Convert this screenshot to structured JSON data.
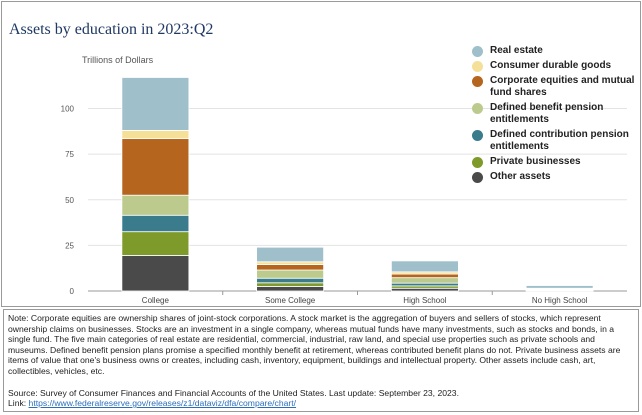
{
  "title": "Assets by education in 2023:Q2",
  "chart_data": {
    "type": "bar",
    "stacked": true,
    "title": "Assets by education in 2023:Q2",
    "ylabel": "Trillions of Dollars",
    "xlabel": "",
    "ylim": [
      0,
      120
    ],
    "yticks": [
      0,
      25,
      50,
      75,
      100
    ],
    "categories": [
      "College",
      "Some College",
      "High School",
      "No High School"
    ],
    "series": [
      {
        "name": "Other assets",
        "color": "#4a4a4a",
        "values": [
          19.5,
          2.5,
          1.5,
          0.2
        ]
      },
      {
        "name": "Private businesses",
        "color": "#7d9a2a",
        "values": [
          13.0,
          2.0,
          1.3,
          0.2
        ]
      },
      {
        "name": "Defined contribution pension entitlements",
        "color": "#3a7b8c",
        "values": [
          9.0,
          2.5,
          1.5,
          0.3
        ]
      },
      {
        "name": "Defined benefit pension entitlements",
        "color": "#bccb8d",
        "values": [
          11.0,
          4.5,
          3.0,
          0.4
        ]
      },
      {
        "name": "Corporate equities and mutual fund shares",
        "color": "#b5651d",
        "values": [
          31.0,
          3.0,
          2.0,
          0.2
        ]
      },
      {
        "name": "Consumer durable goods",
        "color": "#f5e09a",
        "values": [
          4.5,
          1.5,
          1.2,
          0.2
        ]
      },
      {
        "name": "Real estate",
        "color": "#9fbfcb",
        "values": [
          29.0,
          8.0,
          6.0,
          1.5
        ]
      }
    ],
    "legend_position": "top-right"
  },
  "legend_items": [
    {
      "label": "Real estate",
      "color": "#9fbfcb"
    },
    {
      "label": "Consumer durable goods",
      "color": "#f5e09a"
    },
    {
      "label": "Corporate equities and mutual fund shares",
      "color": "#b5651d"
    },
    {
      "label": "Defined benefit pension entitlements",
      "color": "#bccb8d"
    },
    {
      "label": "Defined contribution pension entitlements",
      "color": "#3a7b8c"
    },
    {
      "label": "Private businesses",
      "color": "#7d9a2a"
    },
    {
      "label": "Other assets",
      "color": "#4a4a4a"
    }
  ],
  "notes": {
    "text": "Note: Corporate equities are ownership shares of joint-stock corporations. A stock market is the aggregation of buyers and sellers of stocks, which represent ownership claims on businesses. Stocks are an investment in a single company, whereas mutual funds have many investments, such as stocks and bonds, in a single fund. The five main categories of real estate are residential, commercial, industrial, raw land, and special use properties such as private schools and museums. Defined benefit pension plans promise a specified monthly benefit at retirement, whereas contributed benefit plans do not. Private business assets are items of value that one's business owns or creates, including cash, inventory, equipment, buildings and intellectual property. Other assets include cash, art, collectibles, vehicles, etc.",
    "source": "Source:  Survey of Consumer Finances and Financial Accounts of the United States. Last update: September 23, 2023.",
    "link_label": "Link:",
    "link_url": "https://www.federalreserve.gov/releases/z1/dataviz/dfa/compare/chart/"
  }
}
